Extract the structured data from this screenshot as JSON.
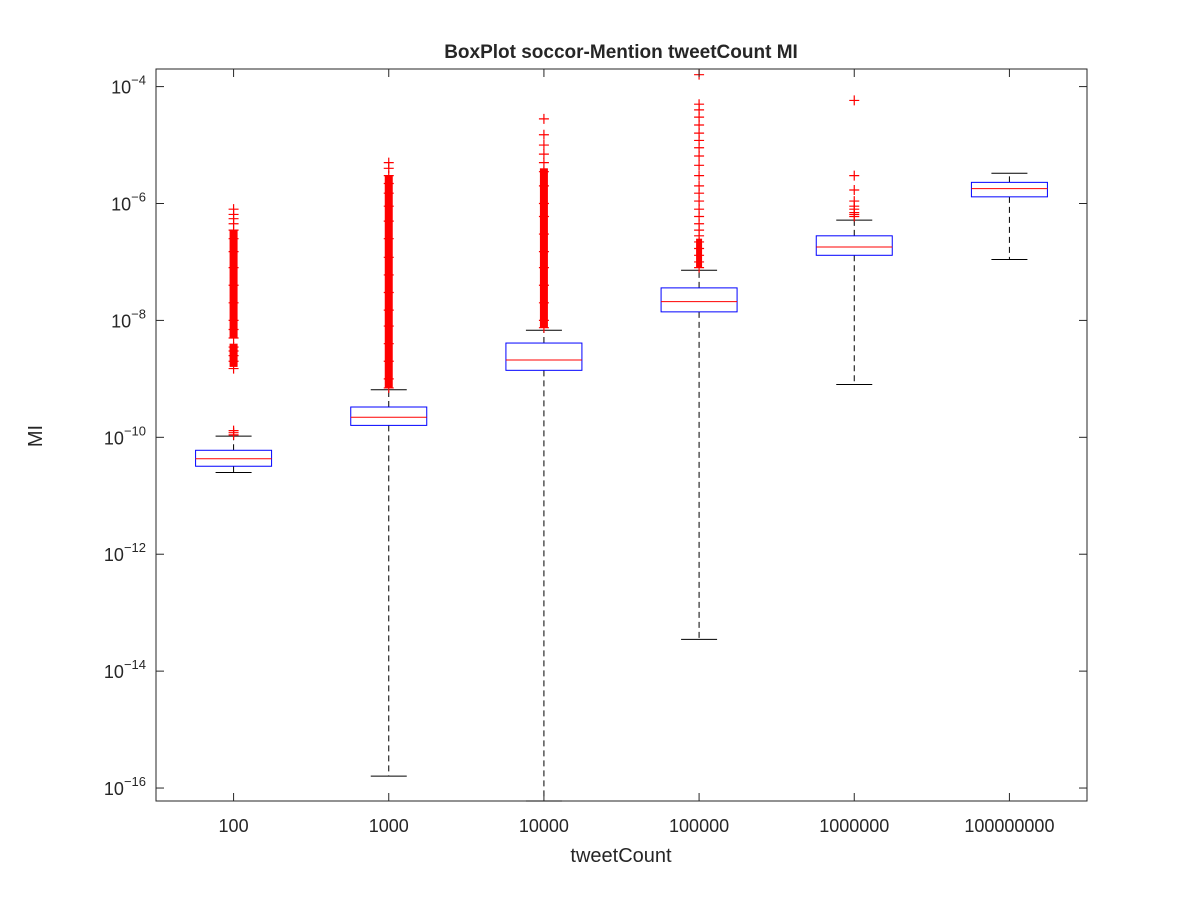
{
  "chart_data": {
    "type": "boxplot",
    "title": "BoxPlot soccor-Mention tweetCount MI",
    "xlabel": "tweetCount",
    "ylabel": "MI",
    "yscale": "log",
    "ylim": [
      6e-17,
      0.0002
    ],
    "ytick_exponents": [
      -16,
      -14,
      -12,
      -10,
      -8,
      -6,
      -4
    ],
    "categories": [
      "100",
      "1000",
      "10000",
      "100000",
      "1000000",
      "100000000"
    ],
    "boxes": [
      {
        "category": "100",
        "whisker_low": 2.5e-11,
        "q1": 3.2e-11,
        "median": 4.3e-11,
        "q3": 6e-11,
        "whisker_high": 1.05e-10,
        "outliers": [
          1.1e-10,
          1.2e-10,
          1.3e-10,
          1.5e-09,
          2e-09,
          2.5e-09,
          3e-09,
          3.5e-09,
          5e-09,
          7e-09,
          1e-08,
          2e-08,
          4e-08,
          8e-08,
          1.5e-07,
          2.5e-07,
          3.5e-07,
          4.5e-07,
          5.5e-07,
          6.5e-07,
          8e-07
        ]
      },
      {
        "category": "1000",
        "whisker_low": 1.6e-16,
        "q1": 1.6e-10,
        "median": 2.2e-10,
        "q3": 3.3e-10,
        "whisker_high": 6.5e-10,
        "outliers": [
          7e-10,
          1e-09,
          2e-09,
          4e-09,
          8e-09,
          1.5e-08,
          3e-08,
          6e-08,
          1.2e-07,
          2.5e-07,
          5e-07,
          9e-07,
          1.5e-06,
          2.2e-06,
          3e-06,
          4e-06,
          5e-06
        ]
      },
      {
        "category": "10000",
        "whisker_low": 6e-17,
        "q1": 1.4e-09,
        "median": 2.1e-09,
        "q3": 4.1e-09,
        "whisker_high": 6.8e-09,
        "outliers": [
          7.5e-09,
          1e-08,
          2e-08,
          4e-08,
          8e-08,
          1.5e-07,
          3e-07,
          6e-07,
          1e-06,
          2e-06,
          3.5e-06,
          5e-06,
          7e-06,
          1e-05,
          1.5e-05,
          2.8e-05
        ]
      },
      {
        "category": "100000",
        "whisker_low": 3.5e-14,
        "q1": 1.4e-08,
        "median": 2.1e-08,
        "q3": 3.6e-08,
        "whisker_high": 7.2e-08,
        "outliers": [
          8e-08,
          1e-07,
          1.3e-07,
          1.7e-07,
          2.2e-07,
          2.8e-07,
          3.5e-07,
          4.5e-07,
          6e-07,
          8e-07,
          1.1e-06,
          1.5e-06,
          2e-06,
          3e-06,
          4.5e-06,
          6.5e-06,
          9e-06,
          1.2e-05,
          1.6e-05,
          2.2e-05,
          3e-05,
          4e-05,
          5e-05,
          0.00016
        ]
      },
      {
        "category": "1000000",
        "whisker_low": 8e-10,
        "q1": 1.3e-07,
        "median": 1.8e-07,
        "q3": 2.8e-07,
        "whisker_high": 5.2e-07,
        "outliers": [
          6e-07,
          6.5e-07,
          7e-07,
          8e-07,
          9e-07,
          1.1e-06,
          1.7e-06,
          3e-06,
          5.8e-05
        ]
      },
      {
        "category": "100000000",
        "whisker_low": 1.1e-07,
        "q1": 1.3e-06,
        "median": 1.8e-06,
        "q3": 2.3e-06,
        "whisker_high": 3.3e-06,
        "outliers": []
      }
    ],
    "colors": {
      "box": "#0000ff",
      "median": "#ff0000",
      "whisker": "#000000",
      "outlier": "#ff0000",
      "axes": "#262626"
    }
  }
}
